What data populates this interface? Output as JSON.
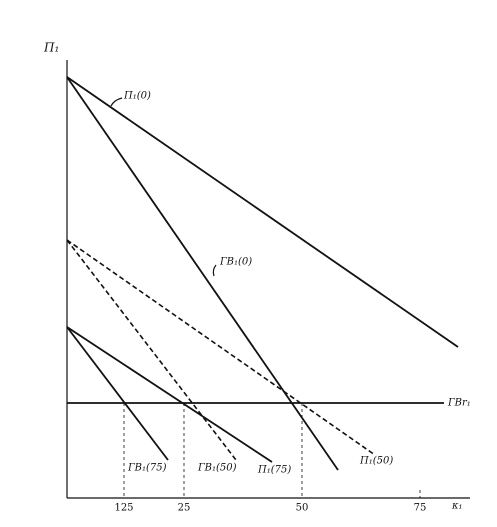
{
  "y_axis": {
    "label": "П₁"
  },
  "x_axis": {
    "label": "κ₁",
    "ticks": [
      "125",
      "25",
      "50",
      "75"
    ]
  },
  "labels": [
    "П₁(0)",
    "ГВ₁(0)",
    "ГВr₁",
    "ГВ₁(75)",
    "ГВ₁(50)",
    "П₁(75)",
    "П₁(50)"
  ]
}
